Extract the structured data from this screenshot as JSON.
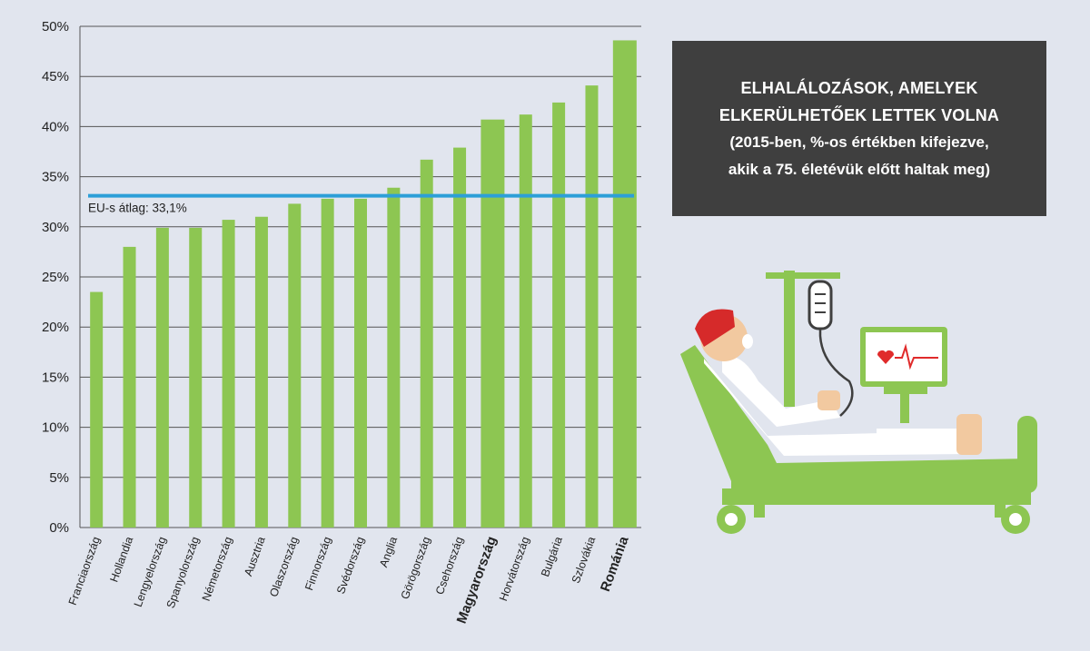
{
  "title_box": {
    "line1": "ELHALÁLOZÁSOK, AMELYEK",
    "line2": "ELKERÜLHETŐEK LETTEK VOLNA",
    "line3": "(2015-ben, %-os értékben kifejezve,",
    "line4": "akik a 75. életévük előtt haltak meg)"
  },
  "colors": {
    "bar": "#8dc652",
    "average_line": "#2c9fd8",
    "background": "#e1e5ee",
    "title_box": "#3f3f3f"
  },
  "illustration": {
    "icon": "hospital-patient-bed-iv-heart-monitor"
  },
  "chart_data": {
    "type": "bar",
    "categories": [
      "Franciaország",
      "Hollandia",
      "Lengyelország",
      "Spanyolország",
      "Németország",
      "Ausztria",
      "Olaszország",
      "Finnország",
      "Svédország",
      "Anglia",
      "Görögország",
      "Csehország",
      "Magyarország",
      "Horvátország",
      "Bulgária",
      "Szlovákia",
      "Románia"
    ],
    "values": [
      23.5,
      28.0,
      29.9,
      29.9,
      30.7,
      31.0,
      32.3,
      32.8,
      32.8,
      33.9,
      36.7,
      37.9,
      40.7,
      41.2,
      42.4,
      44.1,
      48.6
    ],
    "highlighted": [
      "Magyarország",
      "Románia"
    ],
    "yticks": [
      "0%",
      "5%",
      "10%",
      "15%",
      "20%",
      "25%",
      "30%",
      "35%",
      "40%",
      "45%",
      "50%"
    ],
    "ylim": [
      0,
      50
    ],
    "grid": true,
    "average": {
      "value": 33.1,
      "label": "EU-s átlag: 33,1%"
    }
  }
}
